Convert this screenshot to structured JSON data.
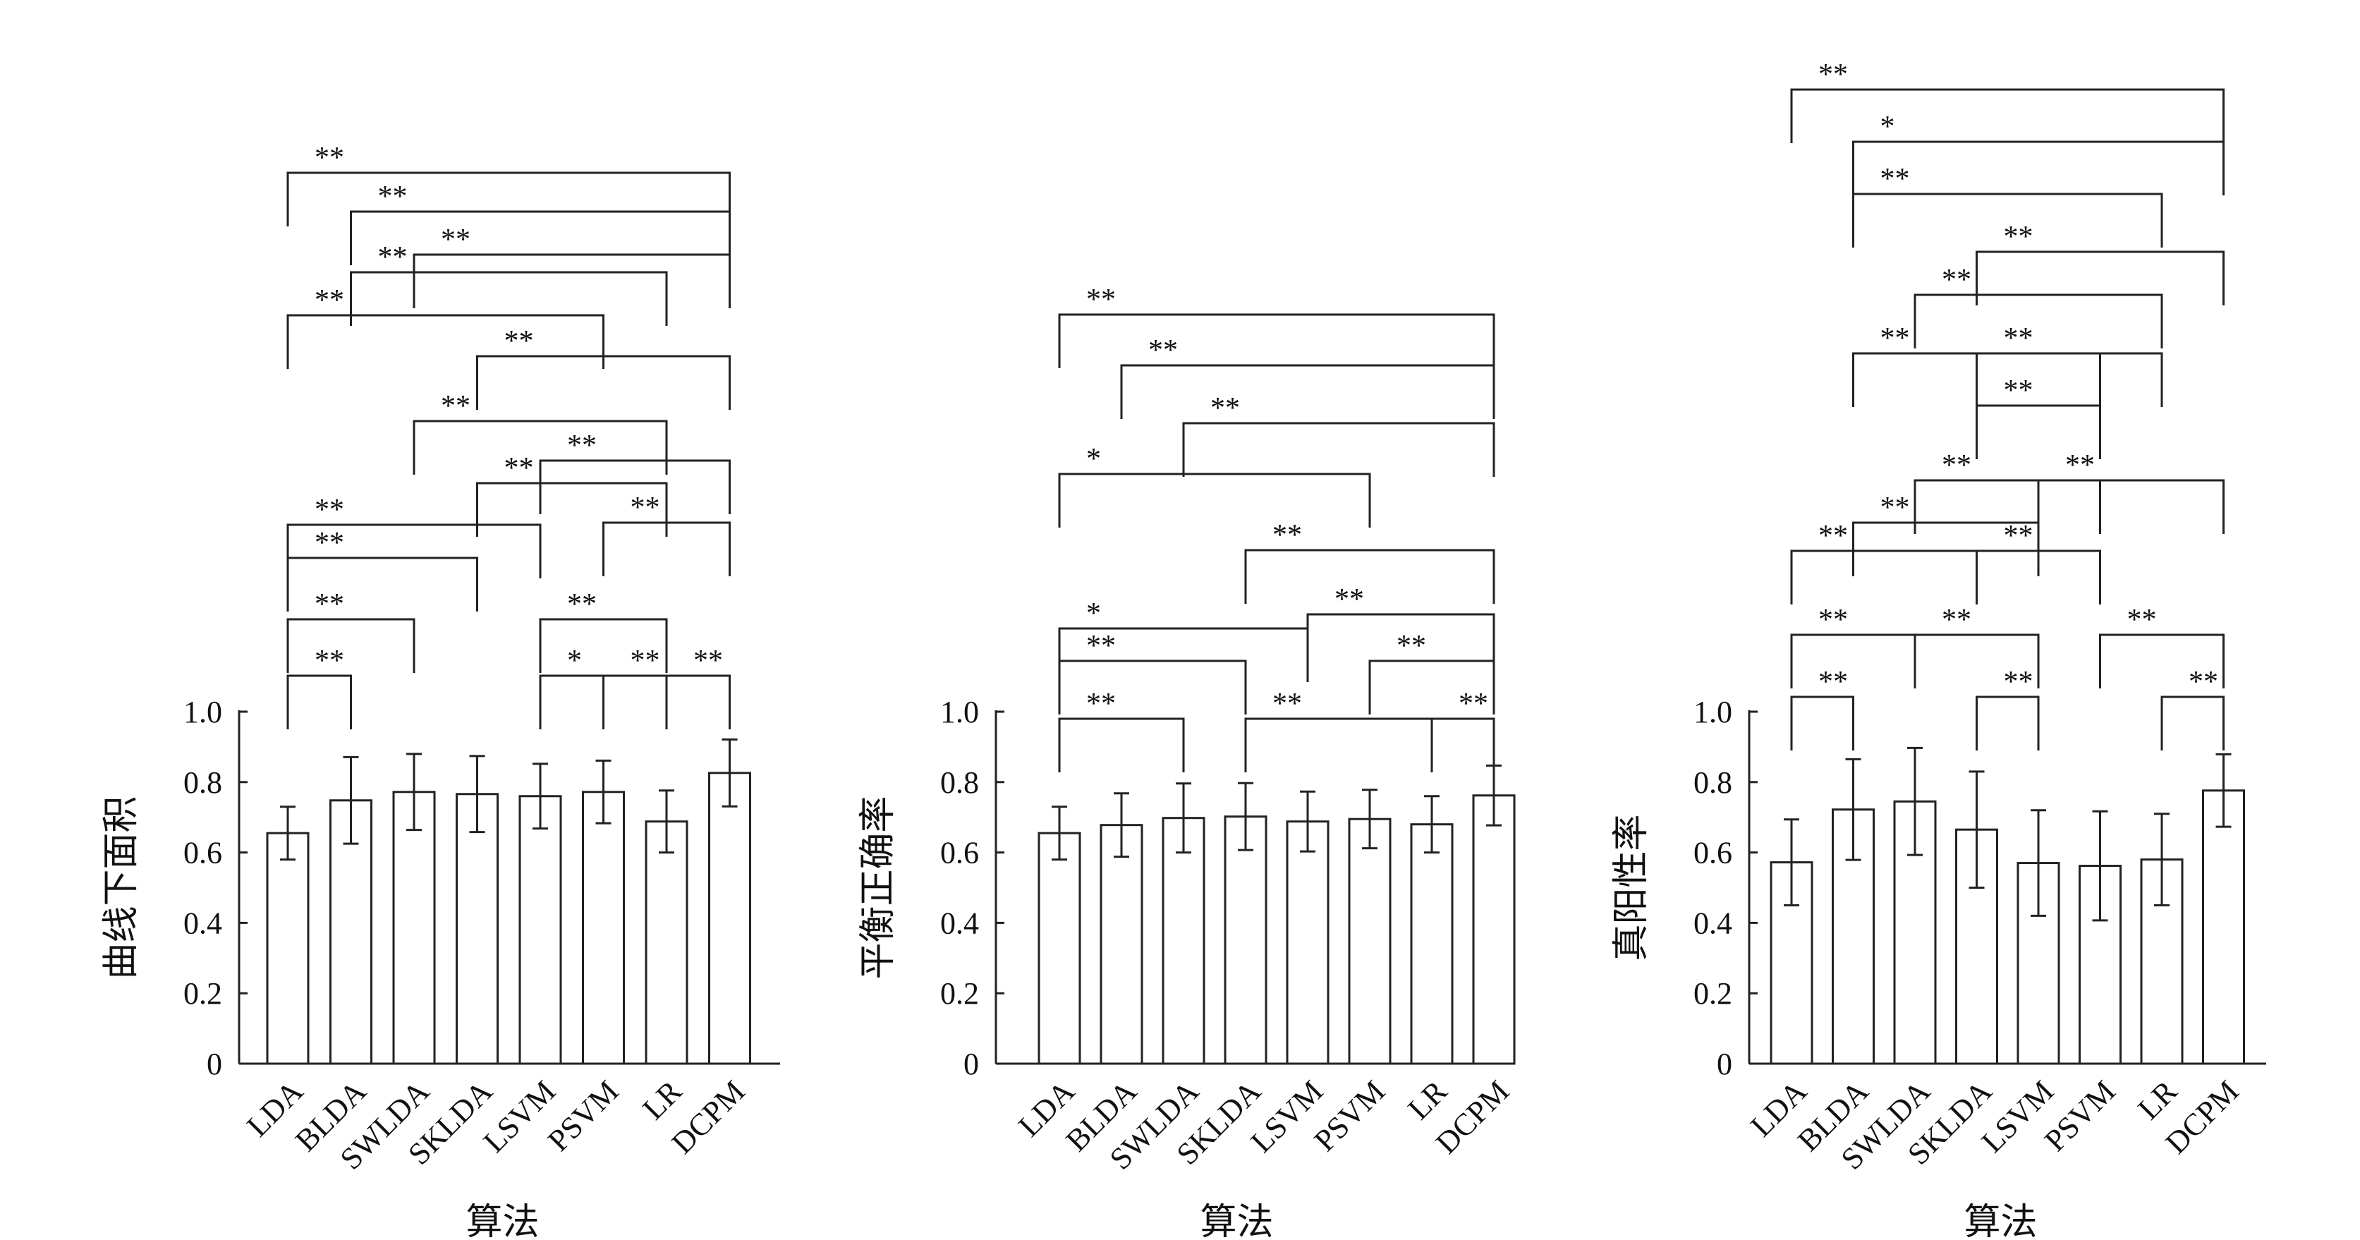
{
  "chart_data": [
    {
      "type": "bar",
      "ylabel": "曲线下面积",
      "xlabel": "算法",
      "ylim": [
        0,
        1.0
      ],
      "yticks": [
        "0",
        "0.2",
        "0.4",
        "0.6",
        "0.8",
        "1.0"
      ],
      "categories": [
        "LDA",
        "BLDA",
        "SWLDA",
        "SKLDA",
        "LSVM",
        "PSVM",
        "LR",
        "DCPM"
      ],
      "values": [
        0.655,
        0.748,
        0.772,
        0.766,
        0.76,
        0.772,
        0.688,
        0.826
      ],
      "errors": [
        0.075,
        0.123,
        0.108,
        0.108,
        0.092,
        0.089,
        0.088,
        0.095
      ],
      "brackets": [
        {
          "from": 0,
          "to": 1,
          "label": "**"
        },
        {
          "from": 4,
          "to": 5,
          "label": "*"
        },
        {
          "from": 5,
          "to": 6,
          "label": "**"
        },
        {
          "from": 6,
          "to": 7,
          "label": "**"
        },
        {
          "from": 0,
          "to": 2,
          "label": "**"
        },
        {
          "from": 4,
          "to": 6,
          "label": "**"
        },
        {
          "from": 0,
          "to": 3,
          "label": "**"
        },
        {
          "from": 0,
          "to": 4,
          "label": "**"
        },
        {
          "from": 5,
          "to": 7,
          "label": "**"
        },
        {
          "from": 3,
          "to": 6,
          "label": "**"
        },
        {
          "from": 4,
          "to": 7,
          "label": "**"
        },
        {
          "from": 2,
          "to": 6,
          "label": "**"
        },
        {
          "from": 3,
          "to": 7,
          "label": "**"
        },
        {
          "from": 0,
          "to": 5,
          "label": "**"
        },
        {
          "from": 1,
          "to": 6,
          "label": "**"
        },
        {
          "from": 2,
          "to": 7,
          "label": "**"
        },
        {
          "from": 1,
          "to": 7,
          "label": "**"
        },
        {
          "from": 0,
          "to": 7,
          "label": "**"
        }
      ]
    },
    {
      "type": "bar",
      "ylabel": "平衡正确率",
      "xlabel": "算法",
      "ylim": [
        0,
        1.0
      ],
      "yticks": [
        "0",
        "0.2",
        "0.4",
        "0.6",
        "0.8",
        "1.0"
      ],
      "categories": [
        "LDA",
        "BLDA",
        "SWLDA",
        "SKLDA",
        "LSVM",
        "PSVM",
        "LR",
        "DCPM"
      ],
      "values": [
        0.655,
        0.678,
        0.698,
        0.702,
        0.688,
        0.695,
        0.68,
        0.762
      ],
      "errors": [
        0.075,
        0.09,
        0.098,
        0.095,
        0.085,
        0.083,
        0.08,
        0.085
      ],
      "brackets": [
        {
          "from": 0,
          "to": 2,
          "label": "**"
        },
        {
          "from": 3,
          "to": 6,
          "label": "**"
        },
        {
          "from": 6,
          "to": 7,
          "label": "**"
        },
        {
          "from": 0,
          "to": 3,
          "label": "**"
        },
        {
          "from": 5,
          "to": 7,
          "label": "**"
        },
        {
          "from": 0,
          "to": 4,
          "label": "*"
        },
        {
          "from": 4,
          "to": 7,
          "label": "**"
        },
        {
          "from": 3,
          "to": 7,
          "label": "**"
        },
        {
          "from": 0,
          "to": 5,
          "label": "*"
        },
        {
          "from": 2,
          "to": 7,
          "label": "**"
        },
        {
          "from": 1,
          "to": 7,
          "label": "**"
        },
        {
          "from": 0,
          "to": 7,
          "label": "**"
        }
      ]
    },
    {
      "type": "bar",
      "ylabel": "真阳性率",
      "xlabel": "算法",
      "ylim": [
        0,
        1.0
      ],
      "yticks": [
        "0",
        "0.2",
        "0.4",
        "0.6",
        "0.8",
        "1.0"
      ],
      "categories": [
        "LDA",
        "BLDA",
        "SWLDA",
        "SKLDA",
        "LSVM",
        "PSVM",
        "LR",
        "DCPM"
      ],
      "values": [
        0.572,
        0.722,
        0.745,
        0.665,
        0.57,
        0.562,
        0.58,
        0.776
      ],
      "errors": [
        0.122,
        0.143,
        0.152,
        0.165,
        0.15,
        0.155,
        0.13,
        0.103
      ],
      "brackets": [
        {
          "from": 0,
          "to": 1,
          "label": "**"
        },
        {
          "from": 3,
          "to": 4,
          "label": "**"
        },
        {
          "from": 6,
          "to": 7,
          "label": "**"
        },
        {
          "from": 0,
          "to": 2,
          "label": "**"
        },
        {
          "from": 2,
          "to": 4,
          "label": "**"
        },
        {
          "from": 5,
          "to": 7,
          "label": "**"
        },
        {
          "from": 0,
          "to": 3,
          "label": "**"
        },
        {
          "from": 3,
          "to": 5,
          "label": "**"
        },
        {
          "from": 1,
          "to": 4,
          "label": "**"
        },
        {
          "from": 4,
          "to": 7,
          "label": "**"
        },
        {
          "from": 2,
          "to": 5,
          "label": "**"
        },
        {
          "from": 3,
          "to": 6,
          "label": "**"
        },
        {
          "from": 3,
          "to": 5,
          "label": "**"
        },
        {
          "from": 1,
          "to": 5,
          "label": "**"
        },
        {
          "from": 2,
          "to": 6,
          "label": "**"
        },
        {
          "from": 3,
          "to": 7,
          "label": "**"
        },
        {
          "from": 1,
          "to": 6,
          "label": "**"
        },
        {
          "from": 1,
          "to": 7,
          "label": "*"
        },
        {
          "from": 0,
          "to": 7,
          "label": "**"
        }
      ]
    }
  ]
}
